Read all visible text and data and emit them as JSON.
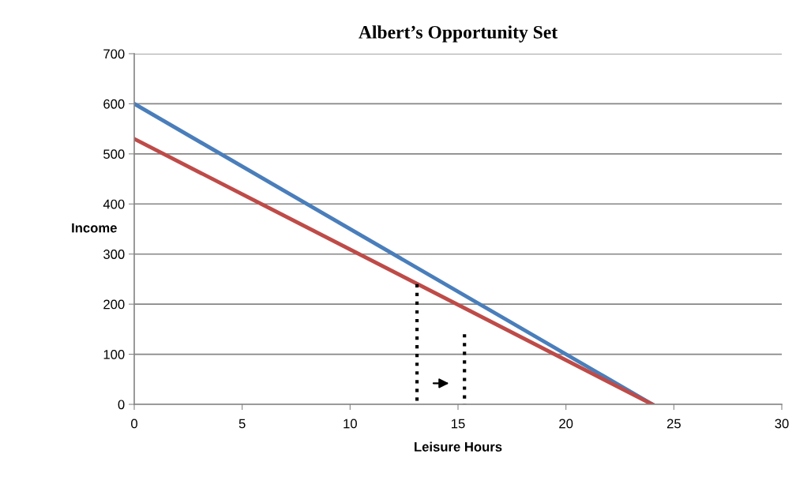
{
  "chart_data": {
    "type": "line",
    "title": "Albert’s Opportunity Set",
    "xlabel": "Leisure Hours",
    "ylabel": "Income",
    "xlim": [
      0,
      30
    ],
    "xticks": [
      0,
      5,
      10,
      15,
      20,
      25,
      30
    ],
    "ylim": [
      0,
      700
    ],
    "yticks": [
      0,
      100,
      200,
      300,
      400,
      500,
      600,
      700
    ],
    "grid": "y",
    "legend": false,
    "series": [
      {
        "color": "#4a7ebb",
        "x": [
          0,
          24
        ],
        "values": [
          600,
          0
        ]
      },
      {
        "color": "#be4b48",
        "x": [
          0,
          24
        ],
        "values": [
          530,
          0
        ]
      },
      {
        "color": "#000000",
        "x": [
          13.1,
          13.1
        ],
        "values": [
          240,
          0
        ],
        "line_style": "dotted"
      },
      {
        "color": "#000000",
        "x": [
          15.3,
          15.3
        ],
        "values": [
          140,
          0
        ],
        "line_style": "dotted"
      }
    ]
  }
}
